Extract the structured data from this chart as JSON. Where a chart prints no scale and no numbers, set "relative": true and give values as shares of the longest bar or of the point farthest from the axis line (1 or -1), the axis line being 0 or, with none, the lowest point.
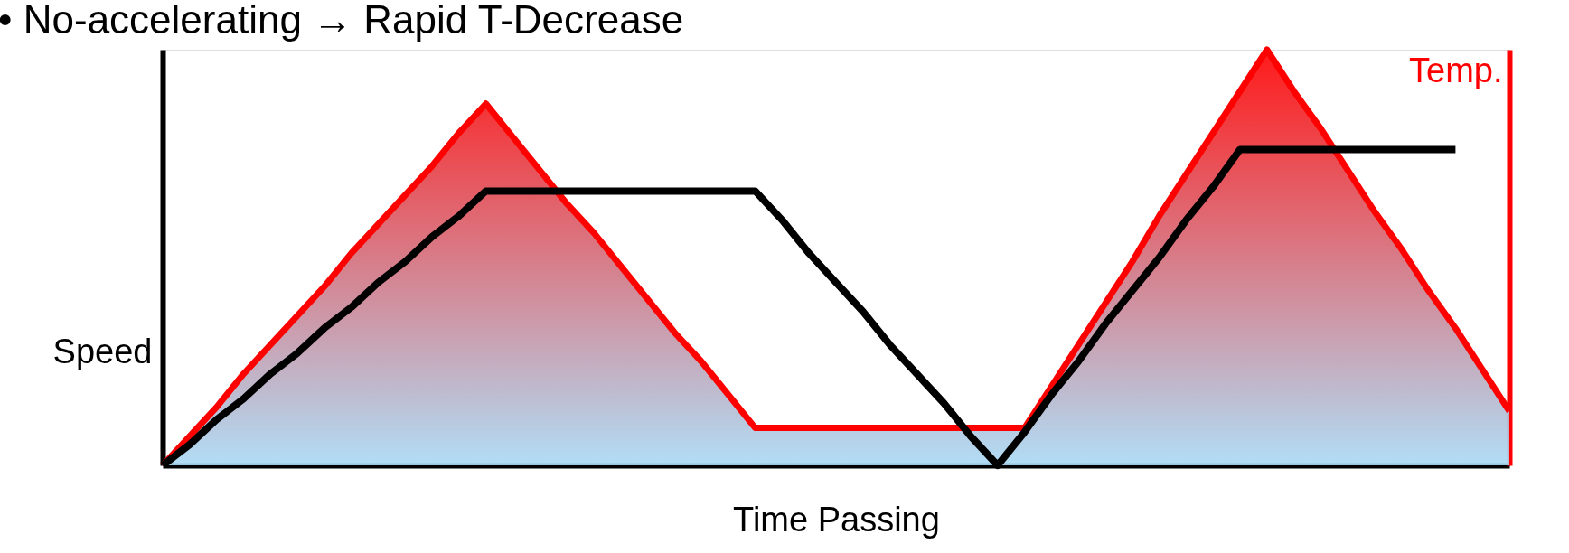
{
  "chart_data": {
    "type": "line",
    "title": "• No-accelerating → Rapid T-Decrease",
    "xlabel": "Time Passing",
    "ylabel": "Speed",
    "y2label": "Temp.",
    "relative": true,
    "grid": false,
    "categories": [
      null,
      null,
      null,
      null,
      null,
      null,
      null,
      null,
      null,
      null,
      null,
      null,
      null,
      null,
      null,
      null,
      null,
      null,
      null,
      null,
      null,
      null,
      null,
      null,
      null,
      null,
      null,
      null,
      null,
      null,
      null,
      null,
      null,
      null,
      null,
      null,
      null,
      null,
      null,
      null,
      null,
      null,
      null,
      null,
      null,
      null,
      null,
      null,
      null,
      null,
      null
    ],
    "series": [
      {
        "type": "area",
        "color": "#ff0000",
        "values": [
          0,
          0.07,
          0.14,
          0.22,
          0.29,
          0.36,
          0.43,
          0.51,
          0.58,
          0.65,
          0.72,
          0.8,
          0.87,
          0.79,
          0.71,
          0.63,
          0.56,
          0.48,
          0.4,
          0.32,
          0.25,
          0.17,
          0.09,
          0.09,
          0.09,
          0.09,
          0.09,
          0.09,
          0.09,
          0.09,
          0.09,
          0.09,
          0.09,
          0.19,
          0.29,
          0.39,
          0.49,
          0.6,
          0.7,
          0.8,
          0.9,
          1.0,
          0.9,
          0.81,
          0.71,
          0.61,
          0.52,
          0.42,
          0.33,
          0.23,
          0.13
        ]
      },
      {
        "color": "#000000",
        "values": [
          0,
          0.05,
          0.11,
          0.16,
          0.22,
          0.27,
          0.33,
          0.38,
          0.44,
          0.49,
          0.55,
          0.6,
          0.66,
          0.66,
          0.66,
          0.66,
          0.66,
          0.66,
          0.66,
          0.66,
          0.66,
          0.66,
          0.66,
          0.59,
          0.51,
          0.44,
          0.37,
          0.29,
          0.22,
          0.15,
          0.07,
          0,
          0.08,
          0.17,
          0.25,
          0.34,
          0.42,
          0.5,
          0.59,
          0.67,
          0.76,
          0.76,
          0.76,
          0.76,
          0.76,
          0.76,
          0.76,
          0.76,
          0.76,
          null,
          null
        ]
      }
    ]
  }
}
